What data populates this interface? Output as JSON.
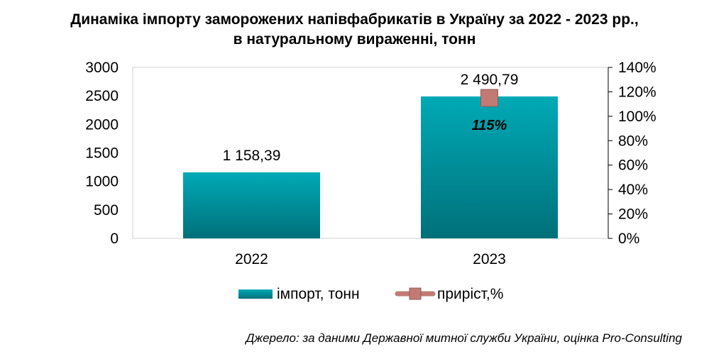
{
  "title": {
    "line1": "Динаміка імпорту заморожених напівфабрикатів в Україну за 2022 - 2023 рр.,",
    "line2": "в натуральному вираженні, тонн"
  },
  "source": "Джерело: за даними Державної митної служби України, оцінка Pro-Consulting",
  "colors": {
    "bar": "#009aa6",
    "bar_dark": "#00707a",
    "marker": "#c17b74",
    "marker_border": "#8e5a55"
  },
  "chart_data": {
    "type": "bar",
    "categories": [
      "2022",
      "2023"
    ],
    "series": [
      {
        "name": "імпорт, тонн",
        "type": "bar",
        "axis": "left",
        "values": [
          1158.39,
          2490.79
        ],
        "labels": [
          "1 158,39",
          "2 490,79"
        ]
      },
      {
        "name": "приріст,%",
        "type": "line",
        "axis": "right",
        "values": [
          null,
          115
        ],
        "labels": [
          "",
          "115%"
        ]
      }
    ],
    "y_left": {
      "min": 0,
      "max": 3000,
      "ticks": [
        "0",
        "500",
        "1000",
        "1500",
        "2000",
        "2500",
        "3000"
      ]
    },
    "y_right": {
      "min": 0,
      "max": 140,
      "ticks": [
        "0%",
        "20%",
        "40%",
        "60%",
        "80%",
        "100%",
        "120%",
        "140%"
      ]
    },
    "grid": false,
    "legend_position": "bottom"
  }
}
